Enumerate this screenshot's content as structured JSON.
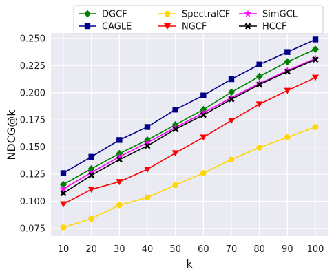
{
  "chart_data": {
    "type": "line",
    "xlabel": "k",
    "ylabel": "NDCG@k",
    "x": [
      10,
      20,
      30,
      40,
      50,
      60,
      70,
      80,
      90,
      100
    ],
    "x_ticks": [
      "10",
      "20",
      "30",
      "40",
      "50",
      "60",
      "70",
      "80",
      "90",
      "100"
    ],
    "y_ticks": [
      "0.075",
      "0.100",
      "0.125",
      "0.150",
      "0.175",
      "0.200",
      "0.225",
      "0.250"
    ],
    "ylim": [
      0.068,
      0.255
    ],
    "grid": true,
    "legend_position": "top-center",
    "series": [
      {
        "name": "DGCF",
        "color": "#008000",
        "marker": "diamond",
        "values": [
          0.1155,
          0.13,
          0.144,
          0.1565,
          0.1705,
          0.1845,
          0.2005,
          0.215,
          0.2285,
          0.24
        ]
      },
      {
        "name": "CAGLE",
        "color": "#00008B",
        "marker": "square",
        "values": [
          0.126,
          0.141,
          0.1565,
          0.1685,
          0.1845,
          0.1975,
          0.2125,
          0.226,
          0.2375,
          0.249
        ]
      },
      {
        "name": "SpectralCF",
        "color": "#FFD700",
        "marker": "circle",
        "values": [
          0.076,
          0.084,
          0.0965,
          0.1035,
          0.115,
          0.126,
          0.1385,
          0.1495,
          0.159,
          0.1685
        ]
      },
      {
        "name": "NGCF",
        "color": "#FF0000",
        "marker": "triangle-down",
        "values": [
          0.0975,
          0.111,
          0.118,
          0.1295,
          0.1445,
          0.159,
          0.1745,
          0.1895,
          0.202,
          0.214
        ]
      },
      {
        "name": "SimGCL",
        "color": "#FF00FF",
        "marker": "star",
        "values": [
          0.1115,
          0.1265,
          0.141,
          0.154,
          0.168,
          0.1815,
          0.1955,
          0.2085,
          0.2205,
          0.2315
        ]
      },
      {
        "name": "HCCF",
        "color": "#000000",
        "marker": "x",
        "values": [
          0.1075,
          0.124,
          0.1385,
          0.151,
          0.1665,
          0.1795,
          0.194,
          0.2075,
          0.2195,
          0.2305
        ]
      }
    ]
  }
}
